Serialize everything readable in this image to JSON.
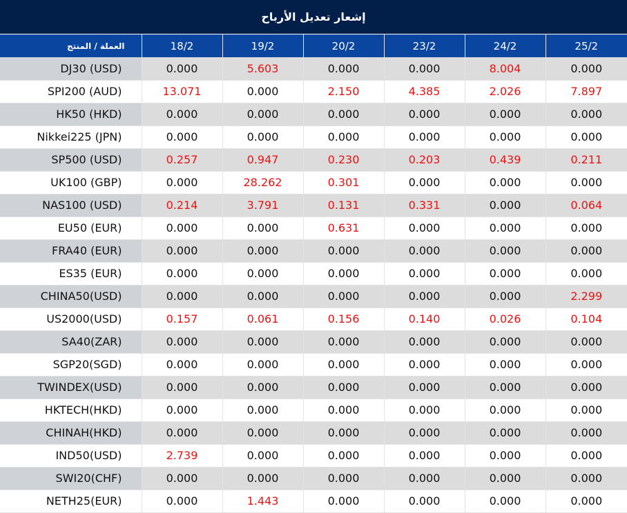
{
  "title": "إشعار تعديل الأرباح",
  "header": {
    "product_label": "العملة / المنتج",
    "dates": [
      "18/2",
      "19/2",
      "20/2",
      "23/2",
      "24/2",
      "25/2"
    ]
  },
  "colors": {
    "title_bg": "#021f49",
    "header_bg": "#0a46a0",
    "positive_value": "#ee1111"
  },
  "rows": [
    {
      "name": "DJ30 (USD)",
      "values": [
        "0.000",
        "5.603",
        "0.000",
        "0.000",
        "8.004",
        "0.000"
      ]
    },
    {
      "name": "SPI200 (AUD)",
      "values": [
        "13.071",
        "0.000",
        "2.150",
        "4.385",
        "2.026",
        "7.897"
      ]
    },
    {
      "name": "HK50 (HKD)",
      "values": [
        "0.000",
        "0.000",
        "0.000",
        "0.000",
        "0.000",
        "0.000"
      ]
    },
    {
      "name": "Nikkei225 (JPN)",
      "values": [
        "0.000",
        "0.000",
        "0.000",
        "0.000",
        "0.000",
        "0.000"
      ]
    },
    {
      "name": "SP500 (USD)",
      "values": [
        "0.257",
        "0.947",
        "0.230",
        "0.203",
        "0.439",
        "0.211"
      ]
    },
    {
      "name": "UK100 (GBP)",
      "values": [
        "0.000",
        "28.262",
        "0.301",
        "0.000",
        "0.000",
        "0.000"
      ]
    },
    {
      "name": "NAS100 (USD)",
      "values": [
        "0.214",
        "3.791",
        "0.131",
        "0.331",
        "0.000",
        "0.064"
      ]
    },
    {
      "name": "EU50 (EUR)",
      "values": [
        "0.000",
        "0.000",
        "0.631",
        "0.000",
        "0.000",
        "0.000"
      ]
    },
    {
      "name": "FRA40 (EUR)",
      "values": [
        "0.000",
        "0.000",
        "0.000",
        "0.000",
        "0.000",
        "0.000"
      ]
    },
    {
      "name": "ES35 (EUR)",
      "values": [
        "0.000",
        "0.000",
        "0.000",
        "0.000",
        "0.000",
        "0.000"
      ]
    },
    {
      "name": "CHINA50(USD)",
      "values": [
        "0.000",
        "0.000",
        "0.000",
        "0.000",
        "0.000",
        "2.299"
      ]
    },
    {
      "name": "US2000(USD)",
      "values": [
        "0.157",
        "0.061",
        "0.156",
        "0.140",
        "0.026",
        "0.104"
      ]
    },
    {
      "name": "SA40(ZAR)",
      "values": [
        "0.000",
        "0.000",
        "0.000",
        "0.000",
        "0.000",
        "0.000"
      ]
    },
    {
      "name": "SGP20(SGD)",
      "values": [
        "0.000",
        "0.000",
        "0.000",
        "0.000",
        "0.000",
        "0.000"
      ]
    },
    {
      "name": "TWINDEX(USD)",
      "values": [
        "0.000",
        "0.000",
        "0.000",
        "0.000",
        "0.000",
        "0.000"
      ]
    },
    {
      "name": "HKTECH(HKD)",
      "values": [
        "0.000",
        "0.000",
        "0.000",
        "0.000",
        "0.000",
        "0.000"
      ]
    },
    {
      "name": "CHINAH(HKD)",
      "values": [
        "0.000",
        "0.000",
        "0.000",
        "0.000",
        "0.000",
        "0.000"
      ]
    },
    {
      "name": "IND50(USD)",
      "values": [
        "2.739",
        "0.000",
        "0.000",
        "0.000",
        "0.000",
        "0.000"
      ]
    },
    {
      "name": "SWI20(CHF)",
      "values": [
        "0.000",
        "0.000",
        "0.000",
        "0.000",
        "0.000",
        "0.000"
      ]
    },
    {
      "name": "NETH25(EUR)",
      "values": [
        "0.000",
        "1.443",
        "0.000",
        "0.000",
        "0.000",
        "0.000"
      ]
    }
  ]
}
